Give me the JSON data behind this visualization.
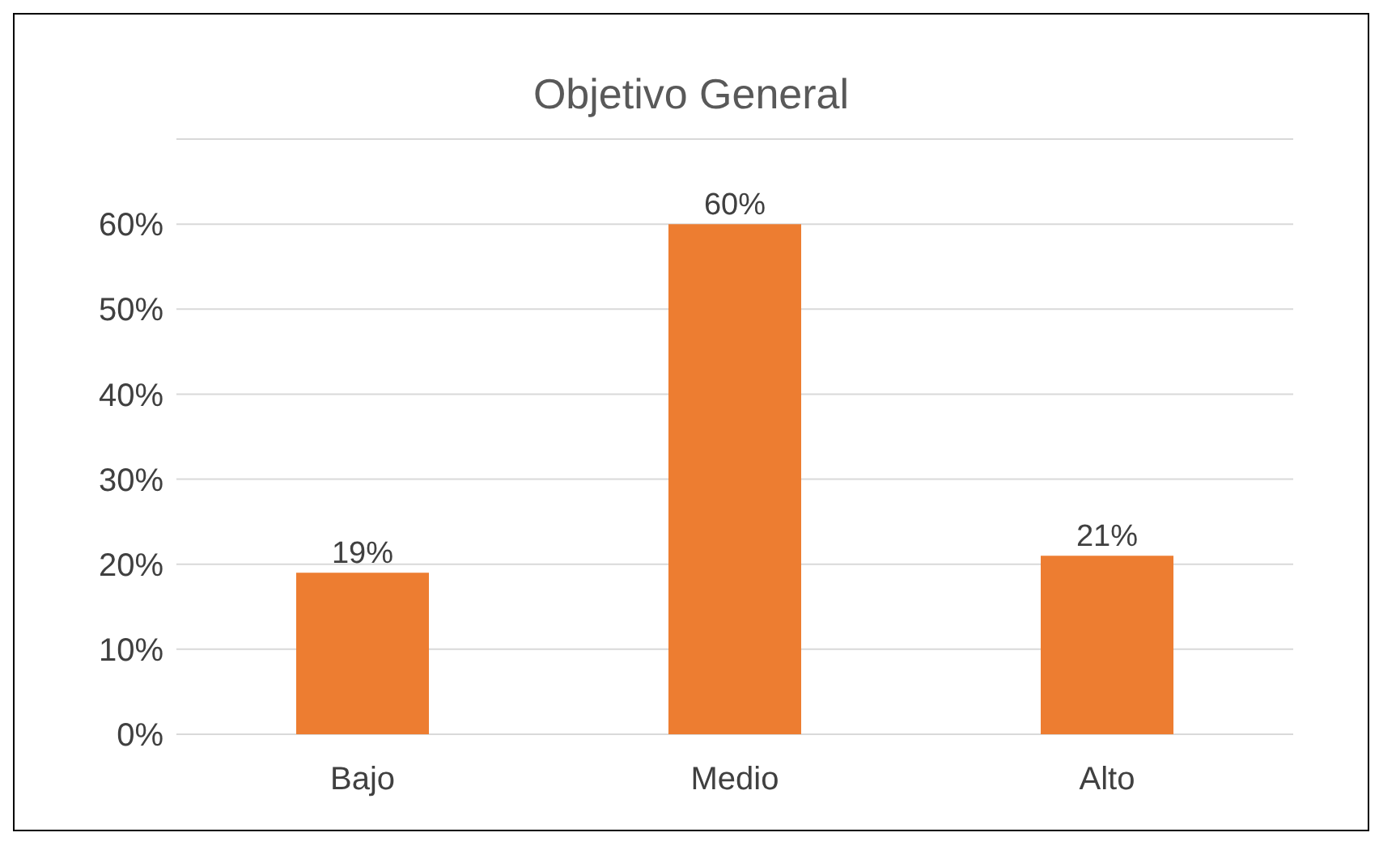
{
  "chart_data": {
    "type": "bar",
    "title": "Objetivo General",
    "categories": [
      "Bajo",
      "Medio",
      "Alto"
    ],
    "values": [
      19,
      60,
      21
    ],
    "value_labels": [
      "19%",
      "60%",
      "21%"
    ],
    "color": "#ed7d31",
    "ylim": [
      0,
      70
    ],
    "yticks": [
      {
        "value": 0,
        "label": "0%"
      },
      {
        "value": 10,
        "label": "10%"
      },
      {
        "value": 20,
        "label": "20%"
      },
      {
        "value": 30,
        "label": "30%"
      },
      {
        "value": 40,
        "label": "40%"
      },
      {
        "value": 50,
        "label": "50%"
      },
      {
        "value": 60,
        "label": "60%"
      },
      {
        "value": 70,
        "label": null
      }
    ],
    "grid": "y",
    "legend": false
  }
}
